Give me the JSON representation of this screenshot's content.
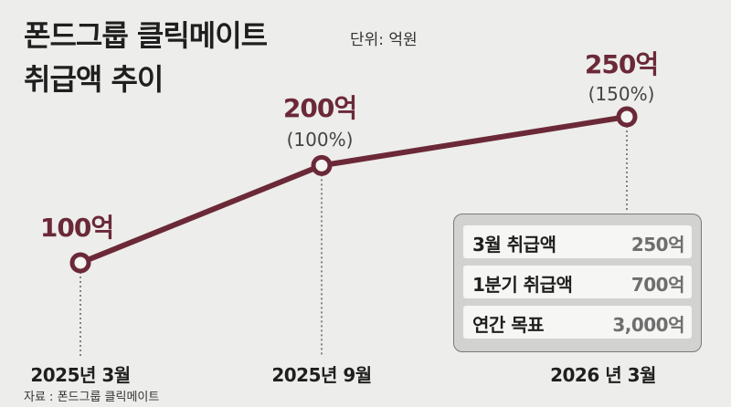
{
  "title_line1": "폰드그룹 클릭메이트",
  "unit_label": "단위: 억원",
  "title_line2": "취급액 추이",
  "colors": {
    "line": "#6b2938",
    "background": "#ededeb",
    "box": "#d2d2d0"
  },
  "chart_data": {
    "type": "line",
    "x": [
      "2025년 3월",
      "2025년 9월",
      "2026  년 3월"
    ],
    "values": [
      100,
      200,
      250
    ],
    "value_labels": [
      "100억",
      "200억",
      "250억"
    ],
    "pct_labels": [
      "",
      "(100%)",
      "(150%)"
    ],
    "unit": "억원",
    "grid": false,
    "legend": false
  },
  "summary": [
    {
      "label": "3월 취급액",
      "value": "250억"
    },
    {
      "label": "1분기 취급액",
      "value": "700억"
    },
    {
      "label": "연간 목표",
      "value": "3,000억"
    }
  ],
  "source": "자료 : 폰드그룹 클릭메이트"
}
